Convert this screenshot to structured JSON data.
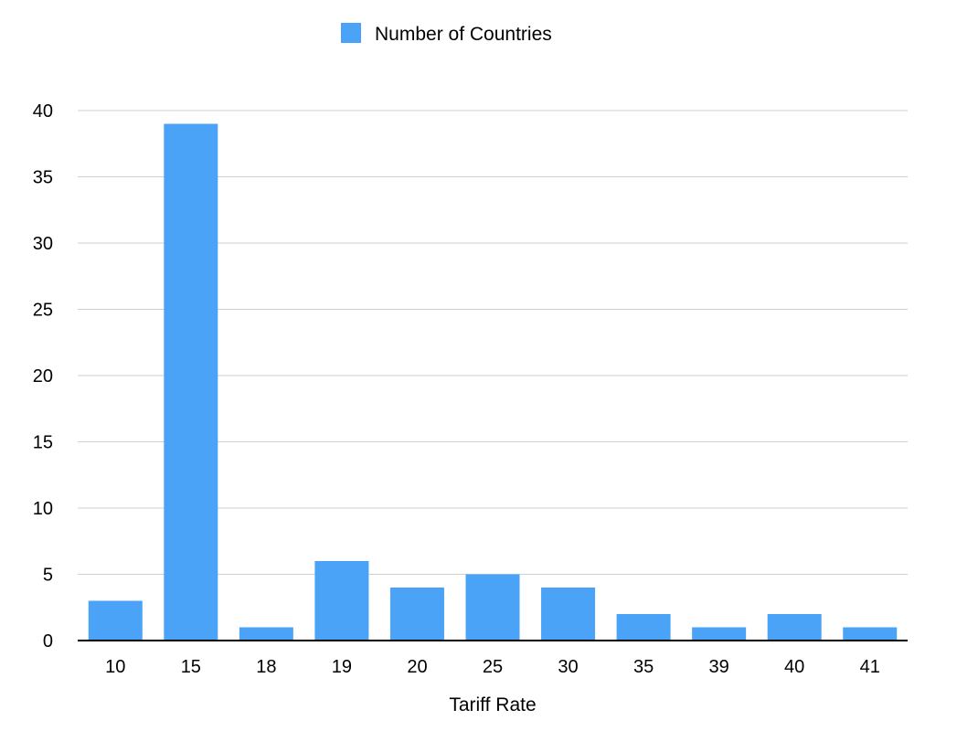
{
  "chart_data": {
    "type": "bar",
    "categories": [
      "10",
      "15",
      "18",
      "19",
      "20",
      "25",
      "30",
      "35",
      "39",
      "40",
      "41"
    ],
    "series": [
      {
        "name": "Number of Countries",
        "values": [
          3,
          39,
          1,
          6,
          4,
          5,
          4,
          2,
          1,
          2,
          1
        ],
        "color": "#4aa3f6"
      }
    ],
    "title": "",
    "xlabel": "Tariff Rate",
    "ylabel": "",
    "ylim": [
      0,
      40
    ],
    "yticks": [
      0,
      5,
      10,
      15,
      20,
      25,
      30,
      35,
      40
    ],
    "grid": true,
    "legend": "top-center"
  }
}
